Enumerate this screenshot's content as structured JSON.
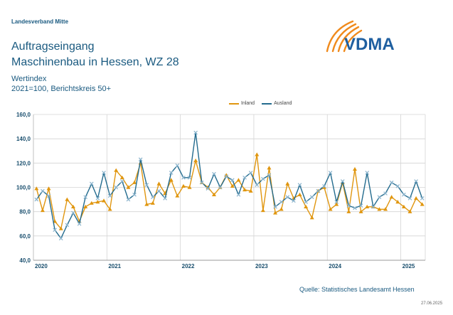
{
  "header": {
    "org": "Landesverband Mitte",
    "title_line1": "Auftragseingang",
    "title_line2": "Maschinenbau in Hessen, WZ 28",
    "sub_line1": "Wertindex",
    "sub_line2": "2021=100, Berichtskreis 50+"
  },
  "logo": {
    "text": "VDMA"
  },
  "footer": {
    "source": "Quelle: Statistisches Landesamt Hessen",
    "date": "27.06.2025"
  },
  "colors": {
    "inland": "#e0960f",
    "ausland": "#236b8e",
    "brand": "#1f5fa0",
    "logo_orange": "#f08a1c"
  },
  "chart_data": {
    "type": "line",
    "ylim": [
      40,
      160
    ],
    "yticks": [
      "40,0",
      "60,0",
      "80,0",
      "100,0",
      "120,0",
      "140,0",
      "160,0"
    ],
    "xticks": [
      "2020",
      "2021",
      "2022",
      "2023",
      "2024",
      "2025"
    ],
    "grid": true,
    "legend": "top",
    "series": [
      {
        "name": "Inland",
        "color": "#e0960f",
        "marker": "triangle",
        "values": [
          99,
          81,
          99,
          72,
          66,
          90,
          84,
          72,
          84,
          87,
          88,
          89,
          82,
          114,
          108,
          100,
          104,
          120,
          86,
          87,
          103,
          95,
          106,
          93,
          101,
          100,
          122,
          104,
          100,
          94,
          100,
          110,
          101,
          106,
          98,
          97,
          127,
          81,
          116,
          79,
          82,
          103,
          91,
          94,
          84,
          75,
          97,
          100,
          82,
          86,
          104,
          80,
          115,
          80,
          84,
          84,
          82,
          82,
          92,
          88,
          84,
          80,
          91,
          86
        ]
      },
      {
        "name": "Ausland",
        "color": "#236b8e",
        "marker": "x",
        "values": [
          90,
          97,
          93,
          65,
          58,
          69,
          79,
          70,
          92,
          103,
          91,
          112,
          93,
          100,
          105,
          90,
          94,
          123,
          102,
          92,
          97,
          91,
          112,
          118,
          108,
          108,
          145,
          104,
          99,
          111,
          100,
          109,
          106,
          94,
          108,
          112,
          102,
          107,
          110,
          84,
          88,
          92,
          89,
          102,
          88,
          92,
          97,
          101,
          112,
          88,
          105,
          85,
          83,
          85,
          112,
          84,
          92,
          95,
          104,
          101,
          94,
          91,
          105,
          91
        ]
      }
    ]
  }
}
